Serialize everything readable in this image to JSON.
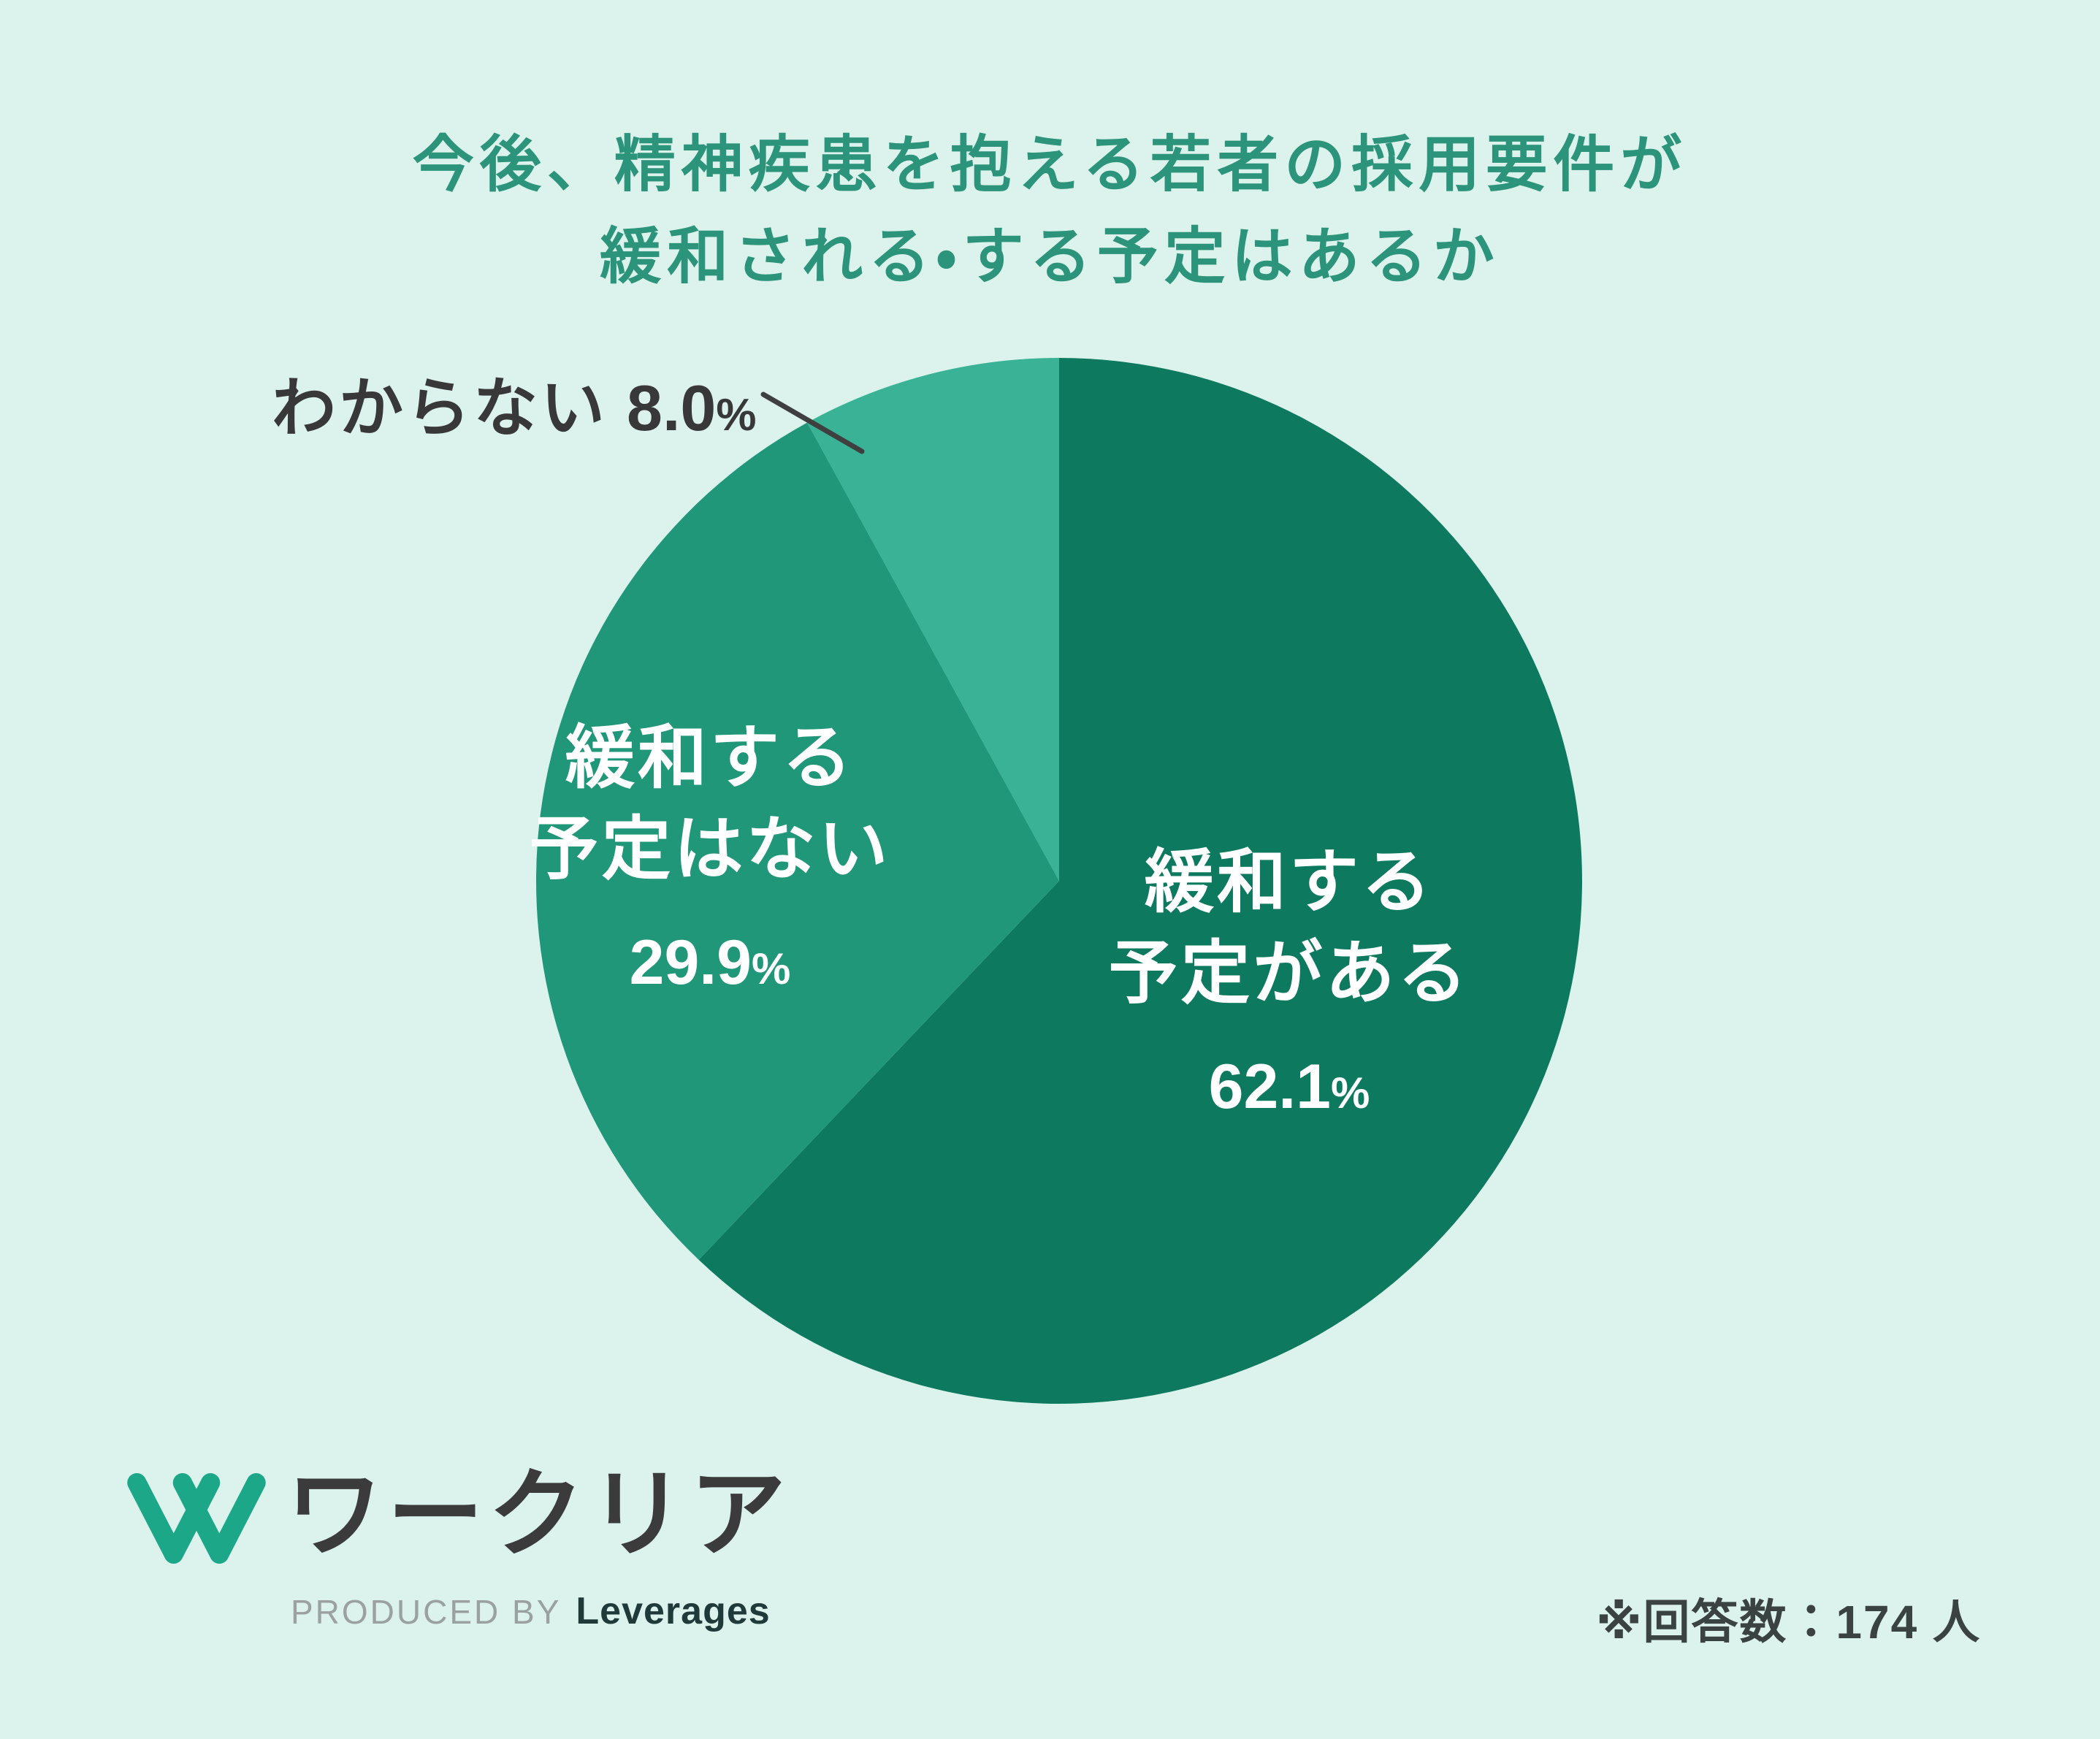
{
  "title": {
    "line1": "今後、精神疾患を抱える若者の採用要件が",
    "line2": "緩和される・する予定はあるか"
  },
  "chart_data": {
    "type": "pie",
    "title": "今後、精神疾患を抱える若者の採用要件が緩和される・する予定はあるか",
    "start_angle_deg": 0,
    "direction": "clockwise",
    "legend_position": "none",
    "percent_sign": "%",
    "slices": [
      {
        "label": "緩和する予定がある",
        "label_line1": "緩和する",
        "label_line2": "予定がある",
        "value": 62.1,
        "percent": "62.1",
        "color": "#0d7a60",
        "text_color": "#ffffff",
        "label_placement": "inside"
      },
      {
        "label": "緩和する予定はない",
        "label_line1": "緩和する",
        "label_line2": "予定はない",
        "value": 29.9,
        "percent": "29.9",
        "color": "#21977a",
        "text_color": "#ffffff",
        "label_placement": "inside"
      },
      {
        "label": "わからない",
        "value": 8.0,
        "percent": "8.0",
        "color": "#39b295",
        "text_color": "#383838",
        "label_placement": "outside-with-leader-line"
      }
    ]
  },
  "footer": {
    "logo_text": "ワークリア",
    "produced_by": "PRODUCED BY",
    "company": "Leverages",
    "note": "※回答数：174 人"
  },
  "colors": {
    "background": "#dcf2ec",
    "title": "#2b947a",
    "dark_text": "#383838",
    "logo_green": "#1ca888"
  }
}
